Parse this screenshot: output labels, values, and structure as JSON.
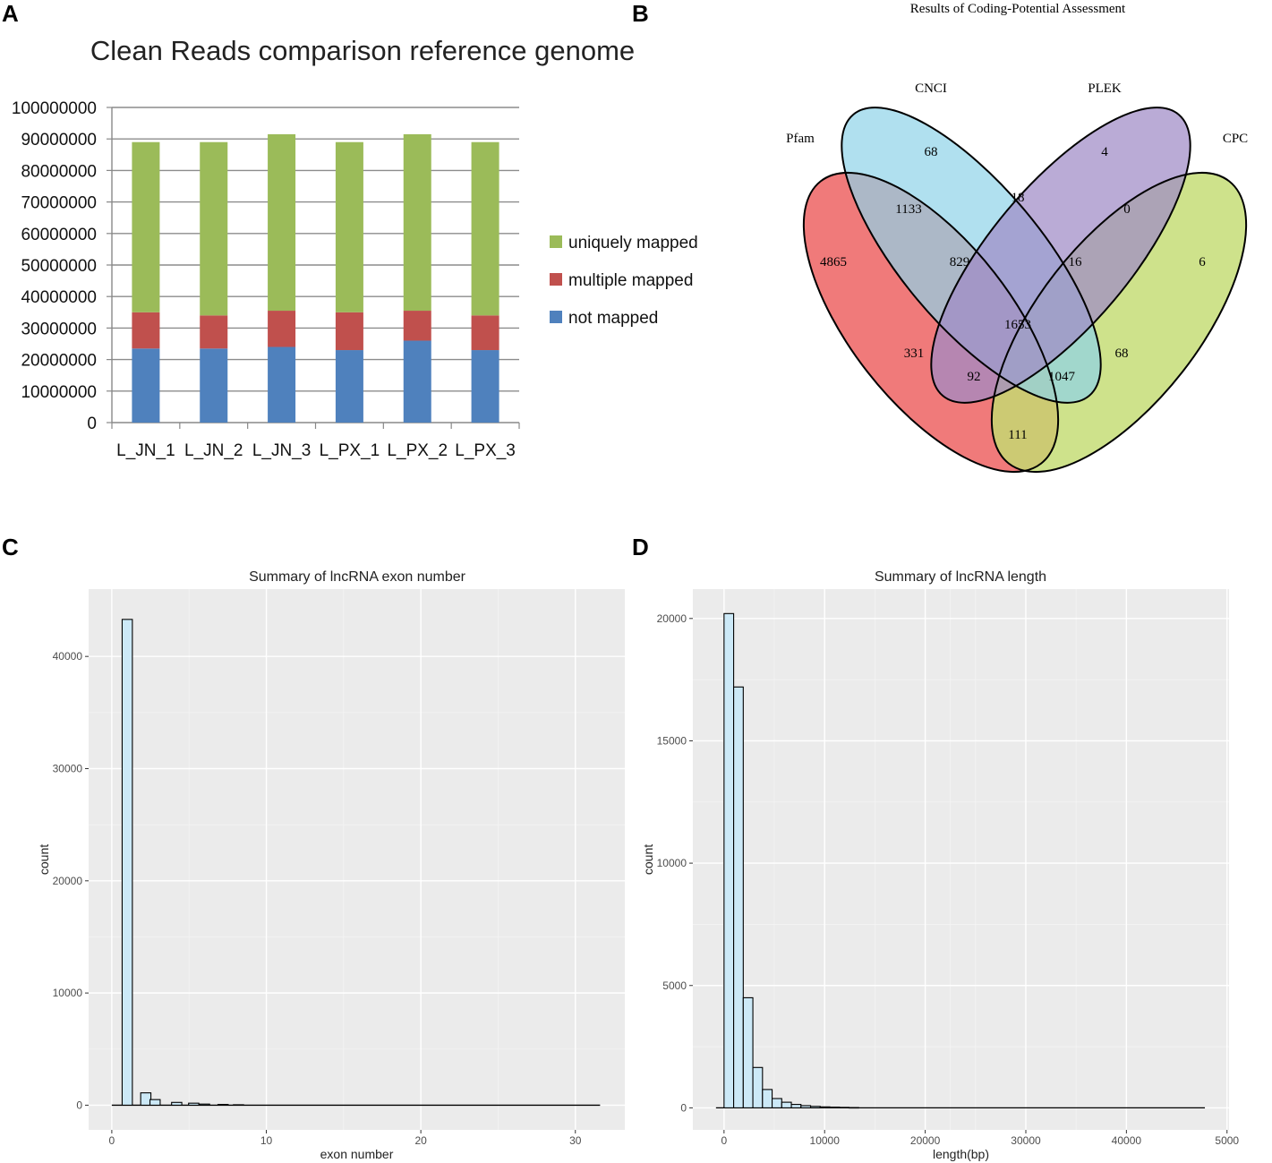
{
  "panels": {
    "a": {
      "letter": "A"
    },
    "b": {
      "letter": "B"
    },
    "c": {
      "letter": "C"
    },
    "d": {
      "letter": "D"
    }
  },
  "colors": {
    "uniquely": "#9bbb59",
    "multiple": "#c0504d",
    "not_mapped": "#4f81bd",
    "pfam": "#f07a7a",
    "cnci": "#8fd3e8",
    "plek": "#a08ac6",
    "cpc": "#c3dc72",
    "hist_fill": "#cce9f7",
    "ggplot_bg": "#ebebeb"
  },
  "chart_data": [
    {
      "id": "a",
      "type": "bar",
      "stacked": true,
      "title": "Clean Reads comparison reference  genome",
      "categories": [
        "L_JN_1",
        "L_JN_2",
        "L_JN_3",
        "L_PX_1",
        "L_PX_2",
        "L_PX_3"
      ],
      "series": [
        {
          "name": "not mapped",
          "values": [
            23500000,
            23500000,
            24000000,
            23000000,
            26000000,
            23000000
          ]
        },
        {
          "name": "multiple mapped",
          "values": [
            11500000,
            10500000,
            11500000,
            12000000,
            9500000,
            11000000
          ]
        },
        {
          "name": "uniquely mapped",
          "values": [
            54000000,
            55000000,
            56000000,
            54000000,
            56000000,
            55000000
          ]
        }
      ],
      "legend": [
        "uniquely mapped",
        "multiple mapped",
        "not mapped"
      ],
      "legend_position": "right",
      "ylim": [
        0,
        100000000
      ],
      "yticks": [
        "0",
        "10000000",
        "20000000",
        "30000000",
        "40000000",
        "50000000",
        "60000000",
        "70000000",
        "80000000",
        "90000000",
        "100000000"
      ]
    },
    {
      "id": "b",
      "type": "venn",
      "title": "Results of Coding-Potential Assessment",
      "sets": [
        "Pfam",
        "CNCI",
        "PLEK",
        "CPC"
      ],
      "regions": [
        {
          "sets": [
            "CNCI"
          ],
          "value": "68"
        },
        {
          "sets": [
            "PLEK"
          ],
          "value": "4"
        },
        {
          "sets": [
            "CPC"
          ],
          "value": "6"
        },
        {
          "sets": [
            "Pfam"
          ],
          "value": "4865"
        },
        {
          "sets": [
            "Pfam",
            "CNCI"
          ],
          "value": "1133"
        },
        {
          "sets": [
            "CNCI",
            "PLEK"
          ],
          "value": "18"
        },
        {
          "sets": [
            "PLEK",
            "CPC"
          ],
          "value": "0"
        },
        {
          "sets": [
            "Pfam",
            "CNCI",
            "PLEK"
          ],
          "value": "829"
        },
        {
          "sets": [
            "CNCI",
            "PLEK",
            "CPC"
          ],
          "value": "16"
        },
        {
          "sets": [
            "Pfam",
            "CNCI",
            "PLEK",
            "CPC"
          ],
          "value": "1653"
        },
        {
          "sets": [
            "Pfam",
            "PLEK"
          ],
          "value": "331"
        },
        {
          "sets": [
            "CNCI",
            "CPC"
          ],
          "value": "68"
        },
        {
          "sets": [
            "Pfam",
            "PLEK",
            "CPC"
          ],
          "value": "92"
        },
        {
          "sets": [
            "Pfam",
            "CNCI",
            "CPC"
          ],
          "value": "1047"
        },
        {
          "sets": [
            "Pfam",
            "CPC"
          ],
          "value": "111"
        }
      ]
    },
    {
      "id": "c",
      "type": "histogram",
      "title": "Summary of lncRNA exon number",
      "xlabel": "exon number",
      "ylabel": "count",
      "xlim": [
        -1.5,
        33.2
      ],
      "ylim": [
        -2200,
        46000
      ],
      "xticks": [
        "0",
        "10",
        "20",
        "30"
      ],
      "yticks": [
        "0",
        "10000",
        "20000",
        "30000",
        "40000"
      ],
      "bin_width": 0.66,
      "x": [
        1,
        2.2,
        2.8,
        4.2,
        5.3,
        6,
        7.2,
        8.2
      ],
      "values": [
        43300,
        1100,
        500,
        250,
        180,
        100,
        70,
        40
      ],
      "baseline": [
        0,
        31.6
      ]
    },
    {
      "id": "d",
      "type": "histogram",
      "title": "Summary of lncRNA length",
      "xlabel": "length(bp)",
      "ylabel": "count",
      "xlim": [
        -3100,
        50200
      ],
      "ylim": [
        -900,
        21200
      ],
      "xticks": [
        "0",
        "10000",
        "20000",
        "30000",
        "40000",
        "5000"
      ],
      "yticks": [
        "0",
        "5000",
        "10000",
        "15000",
        "20000"
      ],
      "bin_width": 956,
      "x": [
        478,
        1434,
        2390,
        3346,
        4302,
        5258,
        6214,
        7170,
        8126,
        9082,
        10038,
        10994,
        11950,
        12906
      ],
      "values": [
        20200,
        17200,
        4500,
        1650,
        750,
        380,
        230,
        140,
        90,
        60,
        40,
        30,
        20,
        12
      ],
      "baseline": [
        -800,
        47800
      ]
    }
  ]
}
